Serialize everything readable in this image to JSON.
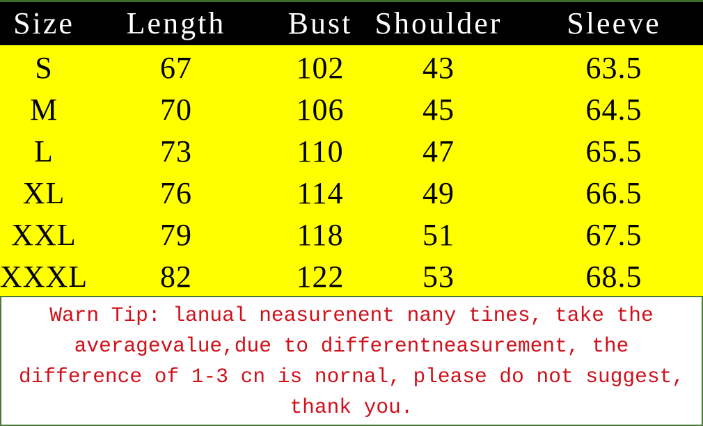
{
  "table": {
    "headers": [
      "Size",
      "Length",
      "Bust",
      "Shoulder",
      "Sleeve"
    ],
    "rows": [
      [
        "S",
        "67",
        "102",
        "43",
        "63.5"
      ],
      [
        "M",
        "70",
        "106",
        "45",
        "64.5"
      ],
      [
        "L",
        "73",
        "110",
        "47",
        "65.5"
      ],
      [
        "XL",
        "76",
        "114",
        "49",
        "66.5"
      ],
      [
        "XXL",
        "79",
        "118",
        "51",
        "67.5"
      ],
      [
        "XXXL",
        "82",
        "122",
        "53",
        "68.5"
      ]
    ]
  },
  "note": {
    "text": "Warn Tip: lanual neasurenent nany tines, take the averagevalue,due to differentneasurement, the difference of 1-3 cn is nornal, please do not suggest, thank you."
  },
  "colors": {
    "header_bg": "#000000",
    "body_bg": "#ffff00",
    "note_text": "#d0101a",
    "note_border": "#4d7a35"
  }
}
